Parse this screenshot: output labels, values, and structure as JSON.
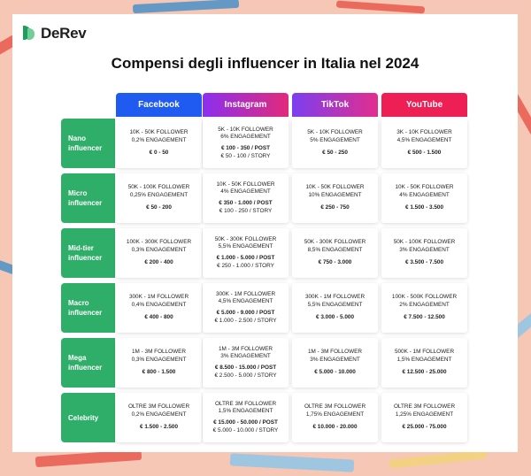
{
  "brand": {
    "name": "DeRev"
  },
  "title": "Compensi degli influencer in Italia nel 2024",
  "colors": {
    "facebook": "#1f5bf0",
    "instagram_from": "#8b2ff0",
    "instagram_to": "#e22a7a",
    "tiktok_from": "#7b3ff0",
    "tiktok_to": "#e32d8d",
    "youtube": "#ee1f55",
    "row_header": "#2fae6a",
    "background": "#f6c7b4"
  },
  "platforms": [
    "Facebook",
    "Instagram",
    "TikTok",
    "YouTube"
  ],
  "rows": [
    {
      "label1": "Nano",
      "label2": "influencer",
      "cells": [
        {
          "f": "10K - 50K FOLLOWER",
          "e": "0,2% ENGAGEMENT",
          "p": "€ 0 - 50",
          "s": ""
        },
        {
          "f": "5K - 10K FOLLOWER",
          "e": "6% ENGAGEMENT",
          "p": "€ 100 - 350 / POST",
          "s": "€ 50 - 100 / STORY"
        },
        {
          "f": "5K - 10K FOLLOWER",
          "e": "5% ENGAGEMENT",
          "p": "€ 50 - 250",
          "s": ""
        },
        {
          "f": "3K - 10K FOLLOWER",
          "e": "4,5% ENGAGEMENT",
          "p": "€ 500 - 1.500",
          "s": ""
        }
      ]
    },
    {
      "label1": "Micro",
      "label2": "influencer",
      "cells": [
        {
          "f": "50K - 100K FOLLOWER",
          "e": "0,25% ENGAGEMENT",
          "p": "€ 50 - 200",
          "s": ""
        },
        {
          "f": "10K - 50K FOLLOWER",
          "e": "4% ENGAGEMENT",
          "p": "€ 350 - 1.000 / POST",
          "s": "€ 100 - 250 / STORY"
        },
        {
          "f": "10K - 50K FOLLOWER",
          "e": "10% ENGAGEMENT",
          "p": "€ 250 - 750",
          "s": ""
        },
        {
          "f": "10K - 50K FOLLOWER",
          "e": "4% ENGAGEMENT",
          "p": "€ 1.500 - 3.500",
          "s": ""
        }
      ]
    },
    {
      "label1": "Mid-tier",
      "label2": "influencer",
      "cells": [
        {
          "f": "100K - 300K FOLLOWER",
          "e": "0,3% ENGAGEMENT",
          "p": "€ 200 - 400",
          "s": ""
        },
        {
          "f": "50K - 300K FOLLOWER",
          "e": "5,5% ENGAGEMENT",
          "p": "€ 1.000 - 5.000 / POST",
          "s": "€ 250 - 1.000 / STORY"
        },
        {
          "f": "50K - 300K FOLLOWER",
          "e": "8,5% ENGAGEMENT",
          "p": "€ 750 - 3.000",
          "s": ""
        },
        {
          "f": "50K - 100K FOLLOWER",
          "e": "3% ENGAGEMENT",
          "p": "€ 3.500 - 7.500",
          "s": ""
        }
      ]
    },
    {
      "label1": "Macro",
      "label2": "influencer",
      "cells": [
        {
          "f": "300K - 1M FOLLOWER",
          "e": "0,4% ENGAGEMENT",
          "p": "€ 400 - 800",
          "s": ""
        },
        {
          "f": "300K - 1M FOLLOWER",
          "e": "4,5% ENGAGEMENT",
          "p": "€ 5.000 - 9.000 / POST",
          "s": "€ 1.000 - 2.500 / STORY"
        },
        {
          "f": "300K - 1M FOLLOWER",
          "e": "5,5% ENGAGEMENT",
          "p": "€ 3.000 - 5.000",
          "s": ""
        },
        {
          "f": "100K - 500K FOLLOWER",
          "e": "2% ENGAGEMENT",
          "p": "€ 7.500 - 12.500",
          "s": ""
        }
      ]
    },
    {
      "label1": "Mega",
      "label2": "influencer",
      "cells": [
        {
          "f": "1M - 3M FOLLOWER",
          "e": "0,3% ENGAGEMENT",
          "p": "€ 800 - 1.500",
          "s": ""
        },
        {
          "f": "1M - 3M FOLLOWER",
          "e": "3% ENGAGEMENT",
          "p": "€ 8.500 - 15.000 / POST",
          "s": "€ 2.500 - 5.000 / STORY"
        },
        {
          "f": "1M - 3M FOLLOWER",
          "e": "3% ENGAGEMENT",
          "p": "€ 5.000 - 10.000",
          "s": ""
        },
        {
          "f": "500K - 1M FOLLOWER",
          "e": "1,5% ENGAGEMENT",
          "p": "€ 12.500 - 25.000",
          "s": ""
        }
      ]
    },
    {
      "label1": "Celebrity",
      "label2": "",
      "cells": [
        {
          "f": "OLTRE 3M FOLLOWER",
          "e": "0,2% ENGAGEMENT",
          "p": "€ 1.500 - 2.500",
          "s": ""
        },
        {
          "f": "OLTRE 3M FOLLOWER",
          "e": "1,5% ENGAGEMENT",
          "p": "€ 15.000 - 50.000 / POST",
          "s": "€ 5.000 - 10.000 / STORY"
        },
        {
          "f": "OLTRE 3M FOLLOWER",
          "e": "1,75% ENGAGEMENT",
          "p": "€ 10.000 - 20.000",
          "s": ""
        },
        {
          "f": "OLTRE 3M FOLLOWER",
          "e": "1,25% ENGAGEMENT",
          "p": "€ 25.000 - 75.000",
          "s": ""
        }
      ]
    }
  ]
}
